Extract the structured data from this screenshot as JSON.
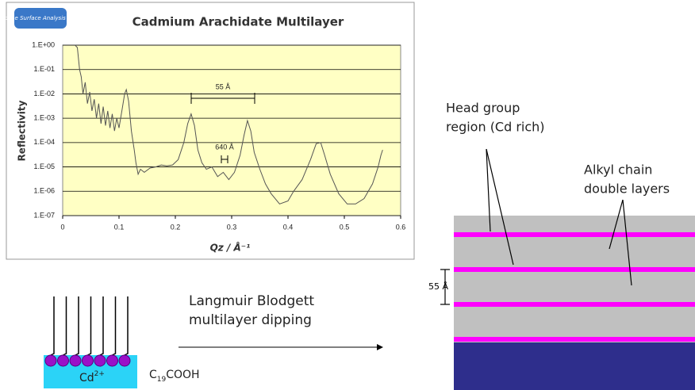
{
  "chart_data": {
    "type": "line",
    "title": "Cadmium Arachidate Multilayer",
    "logo": "Brisbane Surface Analysis Facility",
    "xlabel": "Qz / Å⁻¹",
    "ylabel": "Reflectivity",
    "annotations": [
      "55 Å",
      "640 Å"
    ],
    "color": "#555555",
    "ylog": true,
    "grid": true,
    "xlim": [
      0,
      0.6
    ],
    "xticks": [
      0,
      0.1,
      0.2,
      0.3,
      0.4,
      0.5,
      0.6
    ],
    "ylim": [
      1e-07,
      1
    ],
    "yticks": [
      {
        "value": 1e-07,
        "label": "1.E-07"
      },
      {
        "value": 1e-06,
        "label": "1.E-06"
      },
      {
        "value": 1e-05,
        "label": "1.E-05"
      },
      {
        "value": 0.0001,
        "label": "1.E-04"
      },
      {
        "value": 0.001,
        "label": "1.E-03"
      },
      {
        "value": 0.01,
        "label": "1.E-02"
      },
      {
        "value": 0.1,
        "label": "1.E-01"
      },
      {
        "value": 1,
        "label": "1.E+00"
      }
    ],
    "x": [
      0.022,
      0.026,
      0.03,
      0.033,
      0.036,
      0.04,
      0.044,
      0.048,
      0.052,
      0.056,
      0.06,
      0.064,
      0.068,
      0.072,
      0.076,
      0.08,
      0.084,
      0.088,
      0.092,
      0.096,
      0.1,
      0.105,
      0.11,
      0.113,
      0.117,
      0.122,
      0.127,
      0.13,
      0.134,
      0.138,
      0.145,
      0.155,
      0.165,
      0.175,
      0.185,
      0.195,
      0.205,
      0.215,
      0.222,
      0.228,
      0.234,
      0.24,
      0.247,
      0.255,
      0.265,
      0.275,
      0.285,
      0.295,
      0.305,
      0.315,
      0.322,
      0.328,
      0.334,
      0.34,
      0.35,
      0.36,
      0.37,
      0.385,
      0.4,
      0.41,
      0.425,
      0.44,
      0.45,
      0.458,
      0.465,
      0.475,
      0.49,
      0.505,
      0.52,
      0.535,
      0.55,
      0.56,
      0.565,
      0.568
    ],
    "values": [
      1,
      0.8,
      0.1,
      0.05,
      0.01,
      0.03,
      0.004,
      0.012,
      0.002,
      0.006,
      0.001,
      0.004,
      0.0006,
      0.003,
      0.0005,
      0.002,
      0.0004,
      0.0015,
      0.0003,
      0.001,
      0.0004,
      0.002,
      0.01,
      0.015,
      0.005,
      0.0003,
      5e-05,
      1.5e-05,
      5e-06,
      8e-06,
      6e-06,
      9e-06,
      1e-05,
      1.2e-05,
      1.1e-05,
      1.2e-05,
      2e-05,
      0.0001,
      0.0006,
      0.0015,
      0.0005,
      5e-05,
      1.5e-05,
      8e-06,
      1e-05,
      4e-06,
      6e-06,
      3e-06,
      6e-06,
      3e-05,
      0.0002,
      0.0008,
      0.0003,
      4e-05,
      8e-06,
      2e-06,
      8e-07,
      3e-07,
      4e-07,
      1e-06,
      3e-06,
      2e-05,
      9e-05,
      0.0001,
      3e-05,
      5e-06,
      8e-07,
      3e-07,
      3e-07,
      5e-07,
      2e-06,
      1e-05,
      3e-05,
      5e-05
    ]
  },
  "layers": {
    "head_group": [
      "Head group",
      "region (Cd rich)"
    ],
    "alkyl": [
      "Alkyl chain",
      "double layers"
    ],
    "spacing": "55 Å"
  },
  "dipping": {
    "process": [
      "Langmuir Blodgett",
      "multilayer dipping"
    ],
    "ion": [
      "Cd",
      "2+"
    ],
    "acid": [
      "C",
      "19",
      "COOH"
    ]
  }
}
